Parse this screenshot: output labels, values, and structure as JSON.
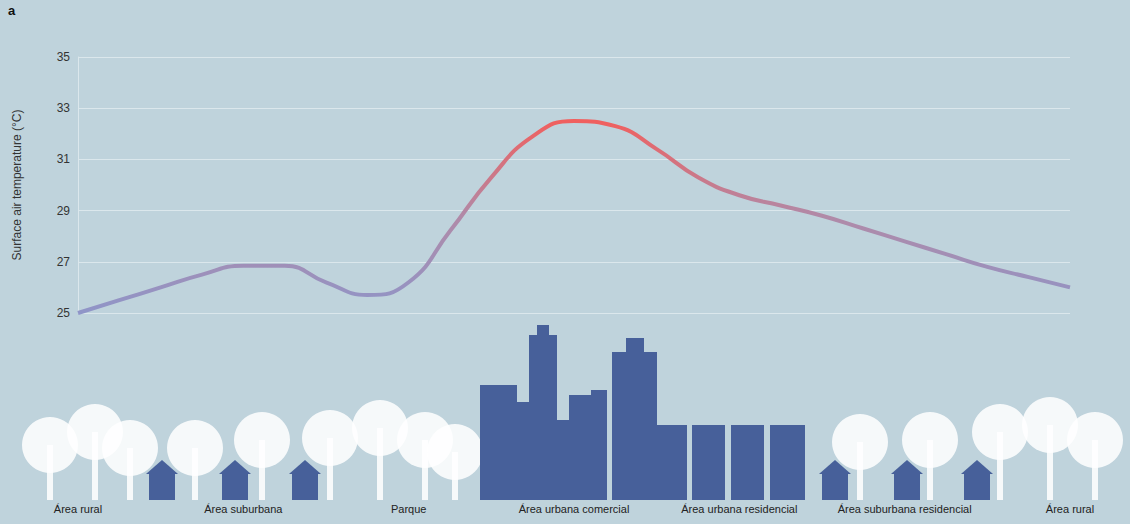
{
  "chart_data": {
    "type": "line",
    "panel_label": "a",
    "y_label": "Surface air temperature (°C)",
    "categories": [
      "Área rural",
      null,
      null,
      null,
      "Área suburbana",
      null,
      null,
      null,
      "Parque",
      null,
      null,
      null,
      "Área urbana comercial",
      null,
      null,
      null,
      "Área urbana residencial",
      null,
      null,
      null,
      "Área suburbana residencial",
      null,
      null,
      null,
      "Área rural"
    ],
    "values": [
      25.0,
      25.5,
      26.0,
      26.5,
      26.85,
      26.85,
      26.2,
      25.7,
      26.2,
      28.2,
      30.3,
      31.9,
      32.5,
      32.3,
      31.4,
      30.3,
      29.6,
      29.2,
      28.8,
      28.3,
      27.8,
      27.3,
      26.8,
      26.4,
      26.0
    ],
    "ylim": [
      25,
      35
    ],
    "yticks": [
      25,
      27,
      29,
      31,
      33,
      35
    ],
    "grid": true
  }
}
